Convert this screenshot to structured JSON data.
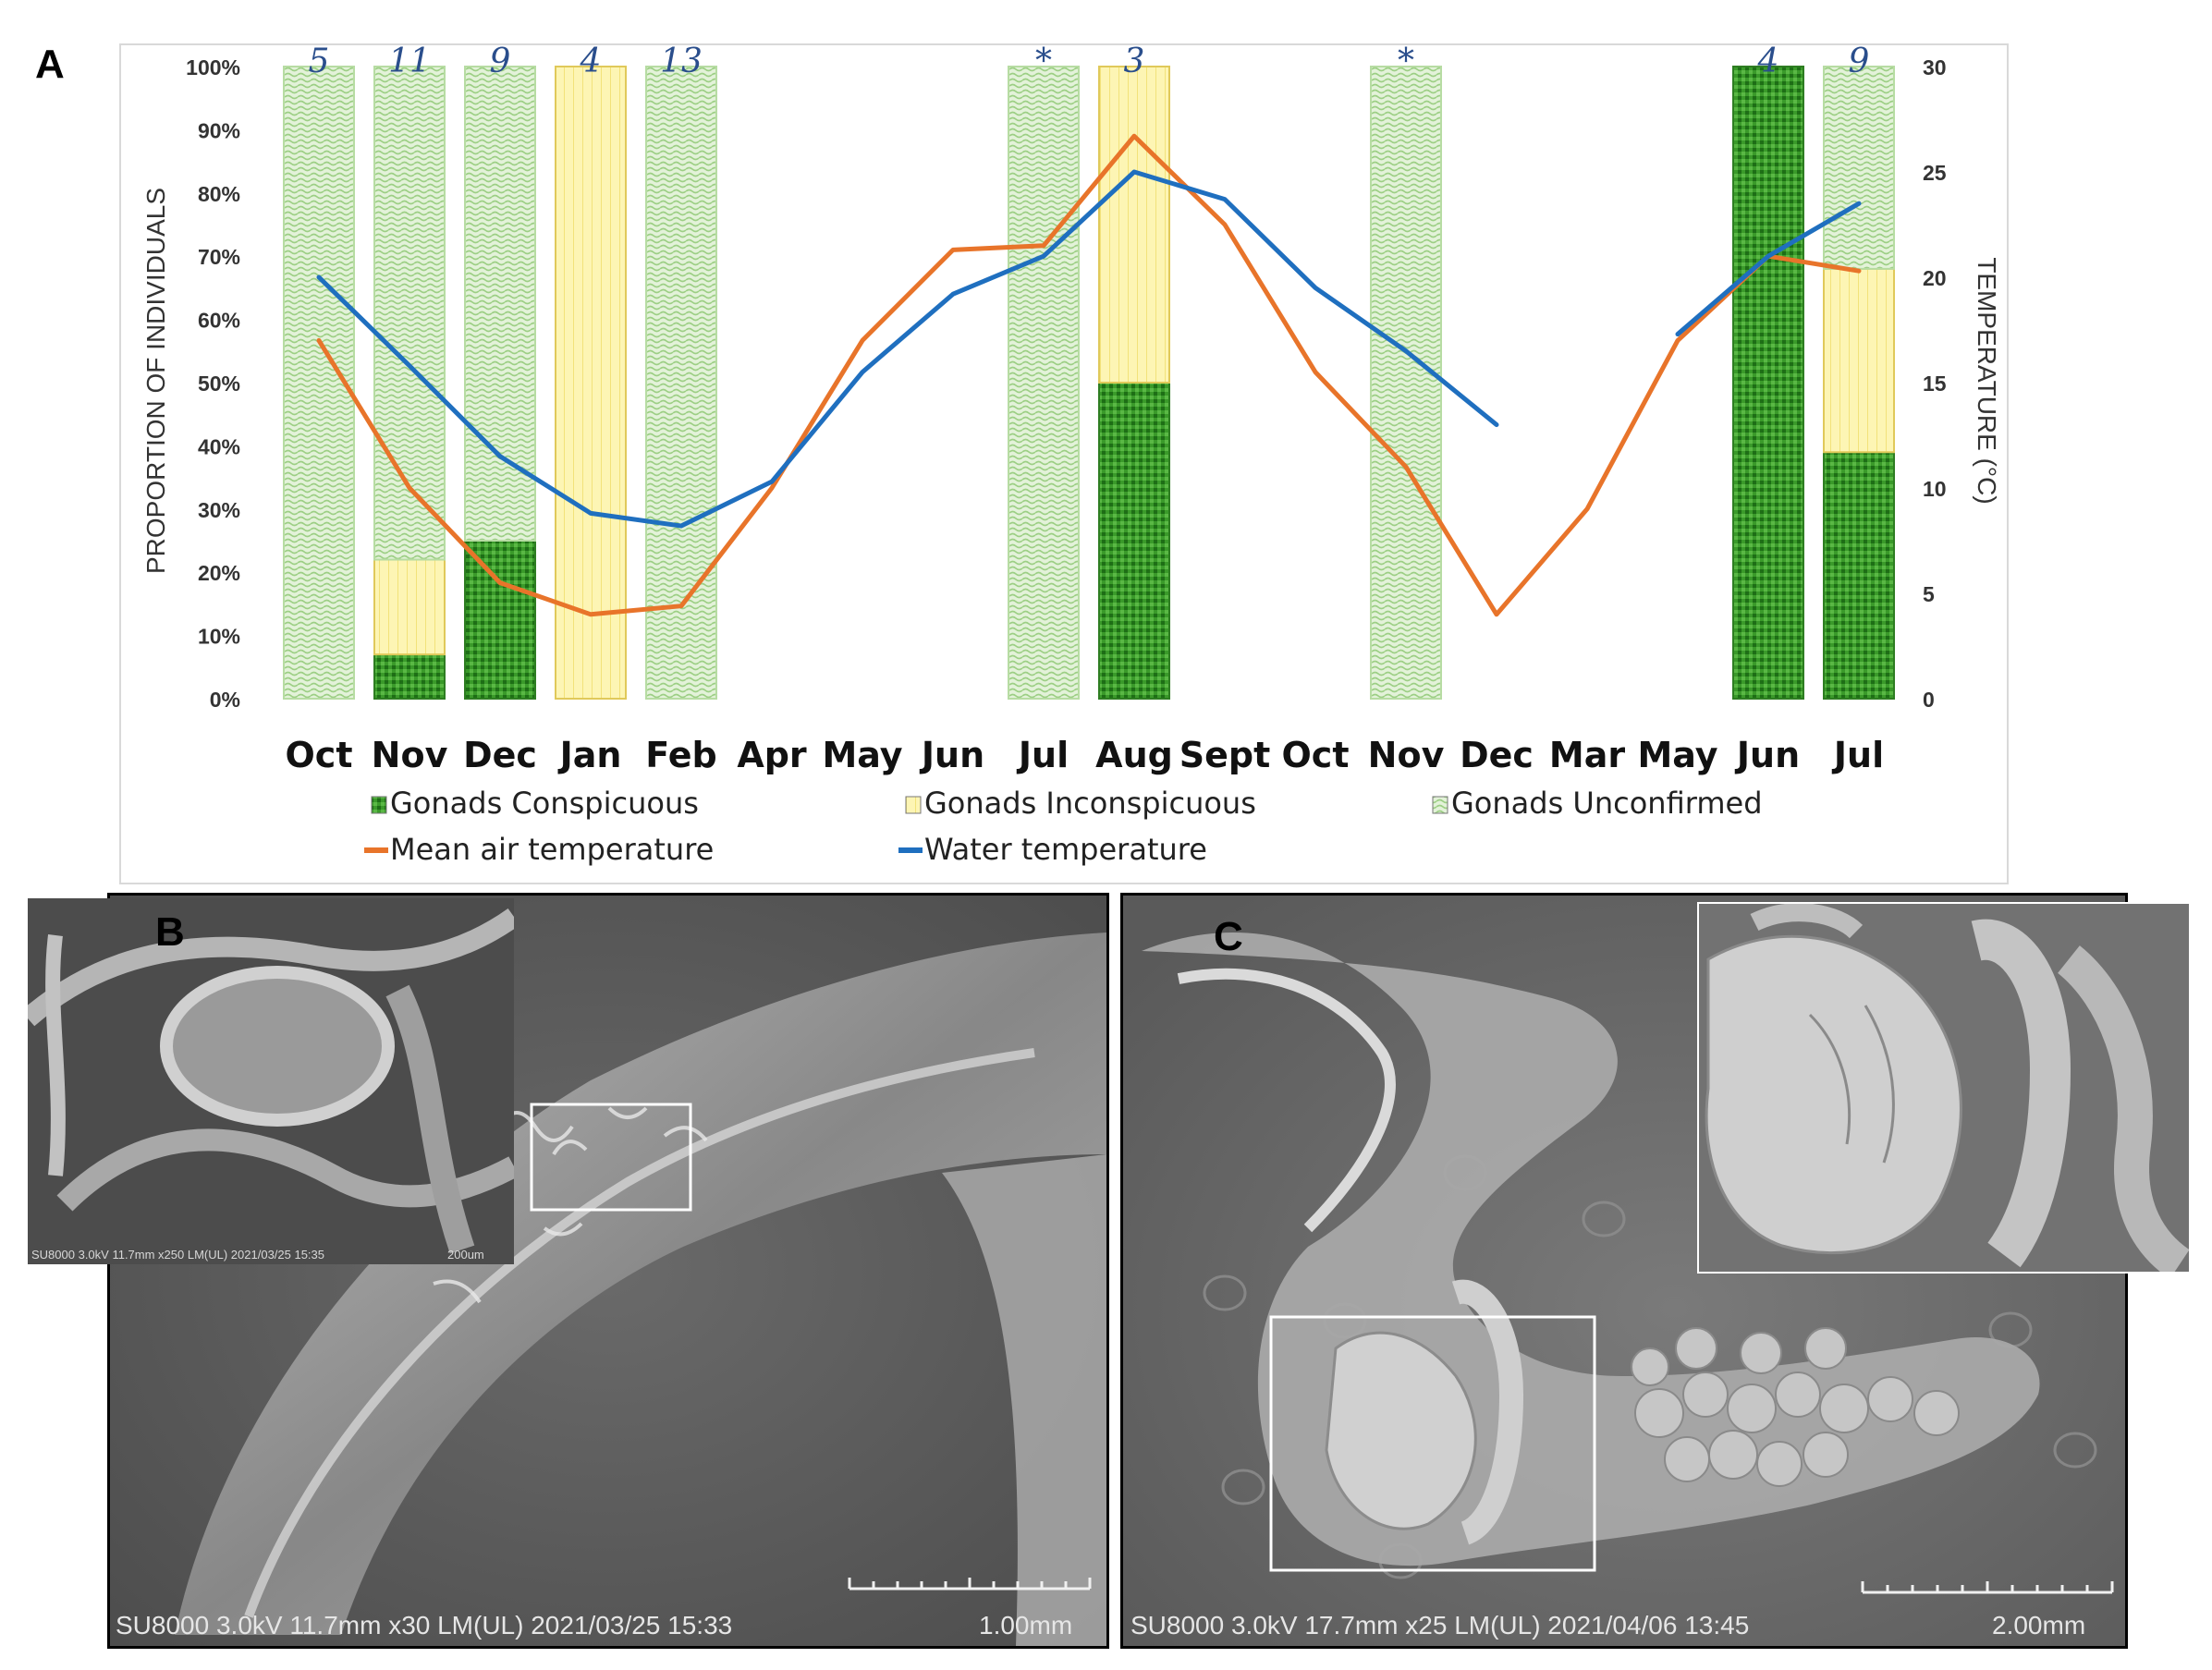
{
  "panels": {
    "a_letter": "A",
    "b_letter": "B",
    "c_letter": "C",
    "b_caption": "SU8000 3.0kV 11.7mm x30 LM(UL) 2021/03/25 15:33",
    "b_scale": "1.00mm",
    "b_inset_caption": "SU8000 3.0kV 11.7mm x250 LM(UL) 2021/03/25 15:35",
    "b_inset_scale": "200um",
    "c_caption": "SU8000 3.0kV 17.7mm x25 LM(UL) 2021/04/06 13:45",
    "c_scale": "2.00mm"
  },
  "colors": {
    "conspicuous": "#2e8b1e",
    "inconspicuous": "#fdf3a6",
    "unconfirmed": "#d2ecc2",
    "air_temp": "#e8742a",
    "water_temp": "#1f6fbf",
    "sample_count": "#2a4e8c"
  },
  "chart_data": {
    "type": "bar",
    "categories": [
      "Oct",
      "Nov",
      "Dec",
      "Jan",
      "Feb",
      "Apr",
      "May",
      "Jun",
      "Jul",
      "Aug",
      "Sept",
      "Oct",
      "Nov",
      "Dec",
      "Mar",
      "May",
      "Jun",
      "Jul"
    ],
    "sample_counts": [
      "5",
      "11",
      "9",
      "4",
      "13",
      "",
      "",
      "",
      "*",
      "3",
      "",
      "",
      "*",
      "",
      "",
      "",
      "4",
      "9"
    ],
    "series": [
      {
        "name": "Gonads Conspicuous",
        "values": [
          0,
          7,
          25,
          0,
          0,
          null,
          null,
          null,
          0,
          50,
          null,
          null,
          0,
          null,
          null,
          null,
          100,
          39
        ]
      },
      {
        "name": "Gonads Inconspicuous",
        "values": [
          0,
          15,
          0,
          100,
          0,
          null,
          null,
          null,
          0,
          50,
          null,
          null,
          0,
          null,
          null,
          null,
          0,
          29
        ]
      },
      {
        "name": "Gonads Unconfirmed",
        "values": [
          100,
          78,
          75,
          0,
          100,
          null,
          null,
          null,
          100,
          0,
          null,
          null,
          100,
          null,
          null,
          null,
          0,
          32
        ]
      },
      {
        "name": "Mean air temperature",
        "axis": "right",
        "values": [
          17,
          10,
          5.5,
          4,
          4.4,
          10,
          17,
          21.3,
          21.5,
          26.7,
          22.5,
          15.5,
          11,
          4,
          9,
          17,
          21,
          20.3
        ]
      },
      {
        "name": "Water temperature",
        "axis": "right",
        "values": [
          20,
          15.8,
          11.5,
          8.8,
          8.2,
          10.3,
          15.5,
          19.2,
          21,
          25,
          23.7,
          19.5,
          16.5,
          13,
          null,
          17.3,
          21,
          23.5
        ]
      }
    ],
    "ylabel": "PROPORTION OF INDIVIDUALS",
    "y2label": "TEMPERATURE (°C)",
    "ylim": [
      0,
      100
    ],
    "y2lim": [
      0,
      30
    ],
    "yticks": [
      "0%",
      "10%",
      "20%",
      "30%",
      "40%",
      "50%",
      "60%",
      "70%",
      "80%",
      "90%",
      "100%"
    ],
    "y2ticks": [
      "0",
      "5",
      "10",
      "15",
      "20",
      "25",
      "30"
    ],
    "legend": [
      "Gonads Conspicuous",
      "Gonads Inconspicuous",
      "Gonads Unconfirmed",
      "Mean air temperature",
      "Water temperature"
    ],
    "legend_position": "bottom",
    "grid": false
  }
}
